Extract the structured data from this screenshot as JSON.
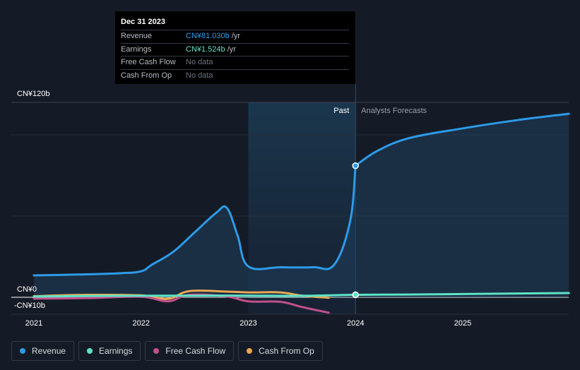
{
  "tooltip": {
    "date": "Dec 31 2023",
    "rows": [
      {
        "label": "Revenue",
        "value": "CN¥81.030b",
        "unit": " /yr",
        "color": "#2d9be8"
      },
      {
        "label": "Earnings",
        "value": "CN¥1.524b",
        "unit": " /yr",
        "color": "#5ee3c6"
      },
      {
        "label": "Free Cash Flow",
        "value": "No data",
        "unit": "",
        "color": "#6b7280"
      },
      {
        "label": "Cash From Op",
        "value": "No data",
        "unit": "",
        "color": "#6b7280"
      }
    ]
  },
  "chart_data": {
    "type": "line",
    "y_axis_labels": {
      "top": "CN¥120b",
      "zero": "CN¥0",
      "bottom": "-CN¥10b"
    },
    "ylim": [
      -10,
      120
    ],
    "xlim": [
      2021.0,
      2025.99
    ],
    "x_ticks": [
      {
        "value": 2021.0,
        "label": "2021"
      },
      {
        "value": 2022.0,
        "label": "2022"
      },
      {
        "value": 2023.0,
        "label": "2023"
      },
      {
        "value": 2024.0,
        "label": "2024"
      },
      {
        "value": 2025.0,
        "label": "2025"
      }
    ],
    "past_region": [
      2023.0,
      2024.0
    ],
    "divider_x": 2024.0,
    "past_label": "Past",
    "forecast_label": "Analysts Forecasts",
    "series": [
      {
        "name": "Revenue",
        "color": "#2d9be8",
        "fill": true,
        "points": [
          [
            2021.0,
            13.5
          ],
          [
            2021.4,
            14
          ],
          [
            2021.8,
            14.8
          ],
          [
            2022.0,
            16
          ],
          [
            2022.1,
            20
          ],
          [
            2022.3,
            28
          ],
          [
            2022.5,
            40
          ],
          [
            2022.7,
            52
          ],
          [
            2022.8,
            55
          ],
          [
            2022.9,
            38
          ],
          [
            2023.0,
            19
          ],
          [
            2023.3,
            18.5
          ],
          [
            2023.6,
            18.5
          ],
          [
            2023.8,
            20
          ],
          [
            2023.95,
            47
          ],
          [
            2024.0,
            81.0
          ]
        ]
      },
      {
        "name": "Revenue forecast",
        "color": "#2d9be8",
        "fill": true,
        "points": [
          [
            2024.0,
            81.0
          ],
          [
            2024.2,
            90
          ],
          [
            2024.5,
            98
          ],
          [
            2025.0,
            104
          ],
          [
            2025.5,
            109
          ],
          [
            2025.99,
            113
          ]
        ]
      },
      {
        "name": "Earnings",
        "color": "#5ee3c6",
        "fill": false,
        "points": [
          [
            2021.0,
            0.5
          ],
          [
            2021.5,
            0.8
          ],
          [
            2022.0,
            0.9
          ],
          [
            2022.5,
            1.0
          ],
          [
            2023.0,
            1.0
          ],
          [
            2023.5,
            0.9
          ],
          [
            2024.0,
            1.524
          ],
          [
            2024.5,
            1.7
          ],
          [
            2025.0,
            2.0
          ],
          [
            2025.99,
            2.6
          ]
        ]
      },
      {
        "name": "Free Cash Flow",
        "color": "#c2508c",
        "fill": false,
        "points": [
          [
            2021.0,
            -0.8
          ],
          [
            2021.5,
            -0.5
          ],
          [
            2022.0,
            0.3
          ],
          [
            2022.25,
            -2.5
          ],
          [
            2022.45,
            1.5
          ],
          [
            2022.8,
            0.5
          ],
          [
            2023.0,
            -2.5
          ],
          [
            2023.3,
            -2.8
          ],
          [
            2023.5,
            -6
          ],
          [
            2023.75,
            -9.5
          ]
        ]
      },
      {
        "name": "Cash From Op",
        "color": "#e8a852",
        "fill": false,
        "points": [
          [
            2021.0,
            0.7
          ],
          [
            2021.5,
            1.5
          ],
          [
            2022.0,
            1.2
          ],
          [
            2022.25,
            -1.0
          ],
          [
            2022.45,
            3.8
          ],
          [
            2022.8,
            3.5
          ],
          [
            2023.0,
            3
          ],
          [
            2023.3,
            3
          ],
          [
            2023.5,
            1
          ],
          [
            2023.75,
            -0.3
          ]
        ]
      }
    ],
    "highlight_points": [
      {
        "series": "Revenue",
        "x": 2024.0,
        "y": 81.0,
        "color": "#2d9be8"
      },
      {
        "series": "Earnings",
        "x": 2024.0,
        "y": 1.524,
        "color": "#5ee3c6"
      }
    ]
  },
  "legend": [
    {
      "label": "Revenue",
      "color": "#2d9be8"
    },
    {
      "label": "Earnings",
      "color": "#5ee3c6"
    },
    {
      "label": "Free Cash Flow",
      "color": "#c2508c"
    },
    {
      "label": "Cash From Op",
      "color": "#e8a852"
    }
  ]
}
